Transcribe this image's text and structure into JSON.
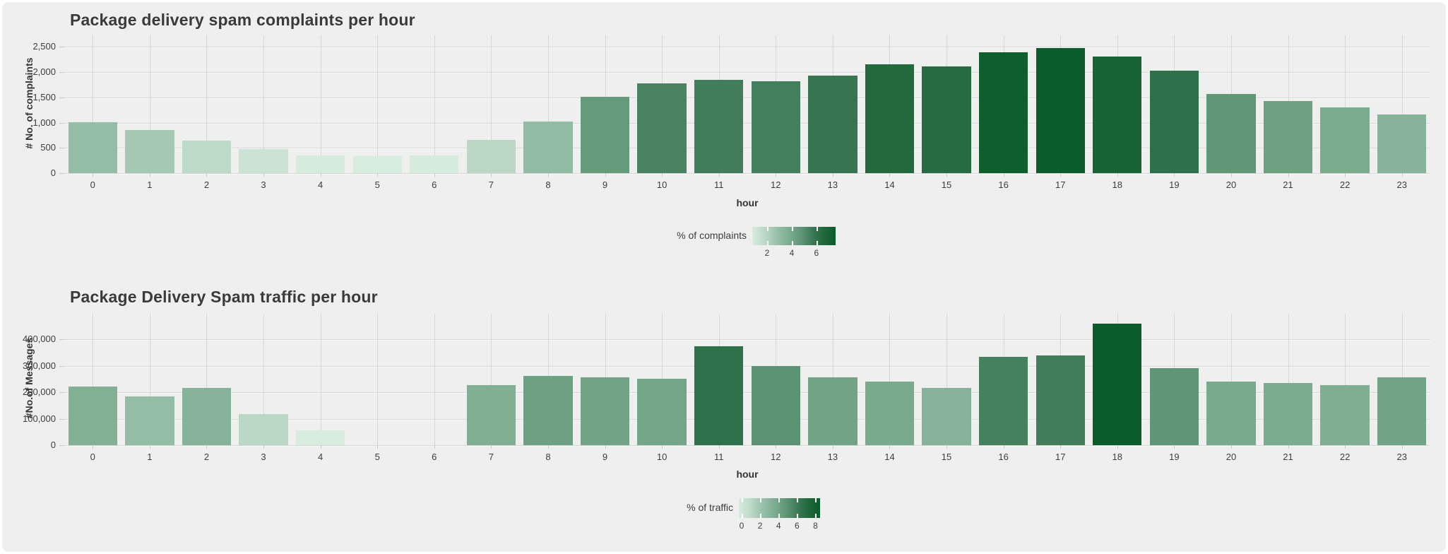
{
  "colors": {
    "page_bg": "#ffffff",
    "panel_bg": "#efefef",
    "grid": "#d6d6d6",
    "tick": "#c9c9c9",
    "text": "#3d3d3d",
    "title_text": "#3a3a3a",
    "colorscale": [
      [
        0.0,
        "#d6ecdf"
      ],
      [
        0.15,
        "#bcd8c7"
      ],
      [
        0.3,
        "#97bfa8"
      ],
      [
        0.45,
        "#7bab8f"
      ],
      [
        0.6,
        "#5c9274"
      ],
      [
        0.75,
        "#377551"
      ],
      [
        0.88,
        "#1c6638"
      ],
      [
        1.0,
        "#0a5c2a"
      ]
    ]
  },
  "chart_data": [
    {
      "type": "bar",
      "title": "Package delivery spam complaints per hour",
      "xlabel": "hour",
      "ylabel": "# No. of complaints",
      "categories": [
        "0",
        "1",
        "2",
        "3",
        "4",
        "5",
        "6",
        "7",
        "8",
        "9",
        "10",
        "11",
        "12",
        "13",
        "14",
        "15",
        "16",
        "17",
        "18",
        "19",
        "20",
        "21",
        "22",
        "23"
      ],
      "values": [
        1010,
        855,
        640,
        480,
        350,
        330,
        350,
        660,
        1020,
        1510,
        1780,
        1850,
        1825,
        1935,
        2155,
        2110,
        2400,
        2475,
        2305,
        2030,
        1565,
        1425,
        1300,
        1160
      ],
      "ylim": [
        0,
        2731
      ],
      "yticks": [
        0,
        500,
        1000,
        1500,
        2000,
        2500
      ],
      "ytick_labels": [
        "0",
        "500",
        "1,000",
        "1,500",
        "2,000",
        "2,500"
      ],
      "grid": true,
      "color_by": "percent-of-total-greens-colorbar",
      "legend": {
        "label": "% of complaints",
        "tick_labels": [
          "2",
          "4",
          "6"
        ],
        "tick_values": [
          2,
          4,
          6
        ],
        "range": {
          "min": 0.8,
          "max": 7.55
        },
        "position": "bottom-center"
      }
    },
    {
      "type": "bar",
      "title": "Package Delivery Spam traffic per hour",
      "xlabel": "hour",
      "ylabel": "#No.of Messages",
      "categories": [
        "0",
        "1",
        "2",
        "3",
        "4",
        "5",
        "6",
        "7",
        "8",
        "9",
        "10",
        "11",
        "12",
        "13",
        "14",
        "15",
        "16",
        "17",
        "18",
        "19",
        "20",
        "21",
        "22",
        "23"
      ],
      "values": [
        222000,
        184000,
        216000,
        118000,
        56000,
        0,
        0,
        226000,
        262000,
        255000,
        252000,
        373000,
        298000,
        255000,
        240000,
        216000,
        333000,
        340000,
        458000,
        290000,
        240000,
        234000,
        228000,
        256000
      ],
      "ylim": [
        0,
        496000
      ],
      "yticks": [
        0,
        100000,
        200000,
        300000,
        400000
      ],
      "ytick_labels": [
        "0",
        "100,000",
        "200,000",
        "300,000",
        "400,000"
      ],
      "grid": true,
      "color_by": "percent-of-total-greens-colorbar",
      "legend": {
        "label": "% of traffic",
        "tick_labels": [
          "0",
          "2",
          "4",
          "6",
          "8"
        ],
        "tick_values": [
          0,
          2,
          4,
          6,
          8
        ],
        "range": {
          "min": -0.3,
          "max": 8.5
        },
        "position": "bottom-center"
      }
    }
  ]
}
